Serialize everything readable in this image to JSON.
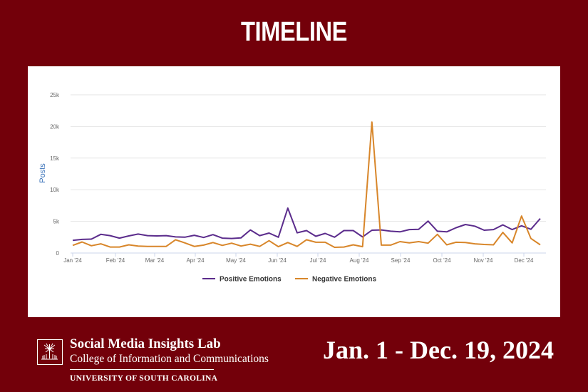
{
  "header": {
    "title": "TIMELINE"
  },
  "footer": {
    "lab_name": "Social Media Insights Lab",
    "college": "College of Information and Communications",
    "university": "UNIVERSITY OF SOUTH CAROLINA",
    "logo_icon": "palmetto-tree-icon",
    "date_range": "Jan. 1 - Dec. 19, 2024"
  },
  "colors": {
    "background": "#73000a",
    "positive": "#5b2c8c",
    "negative": "#d8862a",
    "axis_label": "#3b73b9"
  },
  "chart_data": {
    "type": "line",
    "title": "TIMELINE",
    "xlabel": "",
    "ylabel": "Posts",
    "ylim": [
      0,
      25000
    ],
    "yticks": [
      "0",
      "5k",
      "10k",
      "15k",
      "20k",
      "25k"
    ],
    "xticks": [
      "Jan '24",
      "Feb '24",
      "Mar '24",
      "Apr '24",
      "May '24",
      "Jun '24",
      "Jul '24",
      "Aug '24",
      "Sep '24",
      "Oct '24",
      "Nov '24",
      "Dec '24"
    ],
    "grid": true,
    "legend_position": "bottom",
    "x_start": "2024-01-01",
    "x_interval": "weekly",
    "series": [
      {
        "name": "Positive Emotions",
        "color": "#5b2c8c",
        "values": [
          2000,
          2150,
          2200,
          2950,
          2750,
          2350,
          2700,
          3000,
          2750,
          2700,
          2750,
          2550,
          2500,
          2800,
          2450,
          2900,
          2350,
          2300,
          2400,
          3650,
          2750,
          3150,
          2500,
          7100,
          3200,
          3550,
          2650,
          3100,
          2500,
          3550,
          3550,
          2550,
          3600,
          3650,
          3450,
          3350,
          3700,
          3750,
          5050,
          3450,
          3350,
          4000,
          4500,
          4250,
          3600,
          3700,
          4450,
          3700,
          4300,
          3750,
          5450
        ]
      },
      {
        "name": "Negative Emotions",
        "color": "#d8862a",
        "values": [
          1200,
          1750,
          1150,
          1450,
          950,
          950,
          1300,
          1100,
          1050,
          1050,
          1050,
          2100,
          1600,
          1050,
          1250,
          1650,
          1200,
          1550,
          1100,
          1400,
          1050,
          1950,
          1000,
          1650,
          1050,
          2100,
          1700,
          1700,
          900,
          950,
          1300,
          1000,
          20700,
          1250,
          1250,
          1800,
          1600,
          1800,
          1550,
          2950,
          1300,
          1700,
          1650,
          1450,
          1350,
          1300,
          3250,
          1600,
          5850,
          2300,
          1300
        ]
      }
    ]
  }
}
